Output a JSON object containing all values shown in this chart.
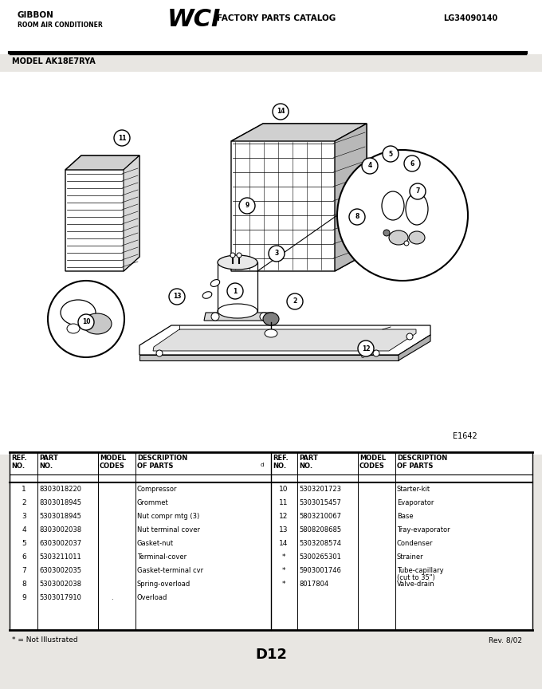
{
  "bg_color": "#e8e6e2",
  "white": "#ffffff",
  "black": "#000000",
  "header": {
    "brand_line1": "GIBBON",
    "brand_line2": "ROOM AIR CONDITIONER",
    "catalog_text": "FACTORY PARTS CATALOG",
    "part_number": "LG34090140"
  },
  "model": "MODEL AK18E7RYA",
  "diagram_label": "E1642",
  "footer_note": "* = Not Illustrated",
  "footer_center": "D12",
  "footer_right": "Rev. 8/02",
  "parts_left": [
    [
      "1",
      "8303018220",
      "",
      "Compressor"
    ],
    [
      "2",
      "8303018945",
      "",
      "Grommet"
    ],
    [
      "3",
      "5303018945",
      "",
      "Nut compr mtg (3)"
    ],
    [
      "4",
      "8303002038",
      "",
      "Nut terminal cover"
    ],
    [
      "5",
      "6303002037",
      "",
      "Gasket-nut"
    ],
    [
      "6",
      "5303211011",
      "",
      "Terminal-cover"
    ],
    [
      "7",
      "6303002035",
      "",
      "Gasket-terminal cvr"
    ],
    [
      "8",
      "5303002038",
      "",
      "Spring-overload"
    ],
    [
      "9",
      "5303017910",
      ".",
      "Overload"
    ]
  ],
  "parts_right": [
    [
      "10",
      "5303201723",
      "",
      "Starter-kit"
    ],
    [
      "11",
      "5303015457",
      "",
      "Evaporator"
    ],
    [
      "12",
      "5803210067",
      "",
      "Base"
    ],
    [
      "13",
      "5808208685",
      "",
      "Tray-evaporator"
    ],
    [
      "14",
      "5303208574",
      "",
      "Condenser"
    ],
    [
      "*",
      "5300265301",
      "",
      "Strainer"
    ],
    [
      "*",
      "5903001746",
      "",
      "Tube-capillary\n(cut to 35\")"
    ],
    [
      "*",
      "8017804",
      "",
      "Valve-drain"
    ]
  ],
  "callouts": [
    [
      295,
      365,
      "1"
    ],
    [
      370,
      378,
      "2"
    ],
    [
      347,
      318,
      "3"
    ],
    [
      464,
      208,
      "4"
    ],
    [
      490,
      193,
      "5"
    ],
    [
      517,
      205,
      "6"
    ],
    [
      524,
      240,
      "7"
    ],
    [
      448,
      272,
      "8"
    ],
    [
      310,
      258,
      "9"
    ],
    [
      108,
      404,
      "10"
    ],
    [
      153,
      173,
      "11"
    ],
    [
      459,
      437,
      "12"
    ],
    [
      222,
      372,
      "13"
    ],
    [
      352,
      140,
      "14"
    ]
  ]
}
